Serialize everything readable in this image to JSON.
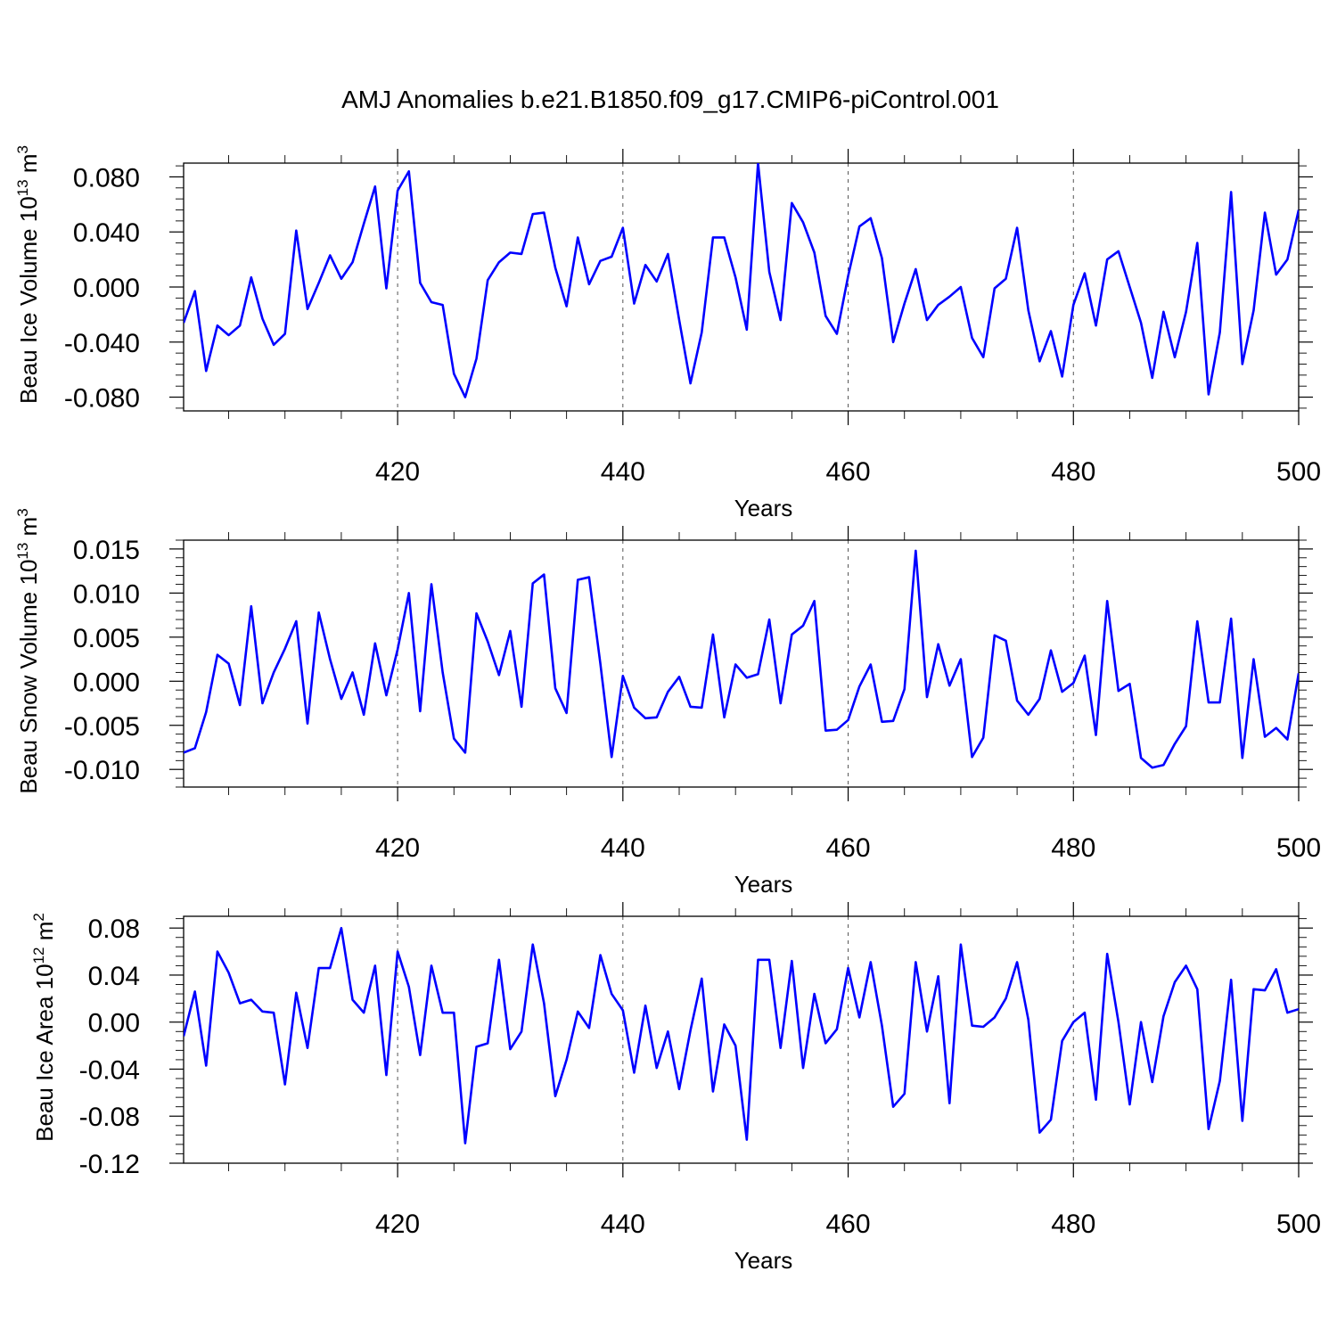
{
  "figure": {
    "title": "AMJ Anomalies b.e21.B1850.f09_g17.CMIP6-piControl.001",
    "line_color": "#0000ff"
  },
  "chart_data": [
    {
      "type": "line",
      "ylabel_main": "Beau Ice Volume 10",
      "ylabel_exp": "13",
      "ylabel_unit": " m",
      "ylabel_unit_exp": "3",
      "xlabel": "Years",
      "xlim": [
        401,
        500
      ],
      "ylim": [
        -0.09,
        0.09
      ],
      "xticks": [
        420,
        440,
        460,
        480,
        500
      ],
      "xtick_labels": [
        "420",
        "440",
        "460",
        "480",
        "500"
      ],
      "yticks": [
        -0.08,
        -0.04,
        0.0,
        0.04,
        0.08
      ],
      "ytick_labels": [
        "-0.080",
        "-0.040",
        "0.000",
        "0.040",
        "0.080"
      ],
      "vgrid": [
        420,
        440,
        460,
        480
      ],
      "series": [
        {
          "x_start": 401,
          "values": [
            -0.026,
            -0.003,
            -0.061,
            -0.028,
            -0.035,
            -0.028,
            0.007,
            -0.023,
            -0.042,
            -0.034,
            0.041,
            -0.016,
            0.003,
            0.023,
            0.006,
            0.018,
            0.046,
            0.073,
            -0.001,
            0.07,
            0.084,
            0.003,
            -0.011,
            -0.013,
            -0.063,
            -0.08,
            -0.052,
            0.005,
            0.018,
            0.025,
            0.024,
            0.053,
            0.054,
            0.014,
            -0.014,
            0.036,
            0.002,
            0.019,
            0.022,
            0.043,
            -0.012,
            0.016,
            0.004,
            0.024,
            -0.024,
            -0.07,
            -0.033,
            0.036,
            0.036,
            0.007,
            -0.031,
            0.09,
            0.011,
            -0.024,
            0.061,
            0.047,
            0.025,
            -0.021,
            -0.034,
            0.008,
            0.044,
            0.05,
            0.021,
            -0.04,
            -0.012,
            0.013,
            -0.024,
            -0.013,
            -0.007,
            0.0,
            -0.037,
            -0.051,
            -0.001,
            0.006,
            0.043,
            -0.017,
            -0.054,
            -0.032,
            -0.065,
            -0.013,
            0.01,
            -0.028,
            0.02,
            0.026,
            0.0,
            -0.026,
            -0.066,
            -0.018,
            -0.051,
            -0.018,
            0.032,
            -0.078,
            -0.033,
            0.069,
            -0.056,
            -0.017,
            0.054,
            0.009,
            0.02,
            0.056
          ]
        }
      ]
    },
    {
      "type": "line",
      "ylabel_main": "Beau Snow Volume 10",
      "ylabel_exp": "13",
      "ylabel_unit": " m",
      "ylabel_unit_exp": "3",
      "xlabel": "Years",
      "xlim": [
        401,
        500
      ],
      "ylim": [
        -0.012,
        0.016
      ],
      "xticks": [
        420,
        440,
        460,
        480,
        500
      ],
      "xtick_labels": [
        "420",
        "440",
        "460",
        "480",
        "500"
      ],
      "yticks": [
        -0.01,
        -0.005,
        0.0,
        0.005,
        0.01,
        0.015
      ],
      "ytick_labels": [
        "-0.010",
        "-0.005",
        "0.000",
        "0.005",
        "0.010",
        "0.015"
      ],
      "vgrid": [
        420,
        440,
        460,
        480
      ],
      "series": [
        {
          "x_start": 401,
          "values": [
            -0.0081,
            -0.0076,
            -0.0035,
            0.003,
            0.002,
            -0.0027,
            0.0085,
            -0.0025,
            0.001,
            0.0037,
            0.0068,
            -0.0048,
            0.0078,
            0.0025,
            -0.002,
            0.001,
            -0.0038,
            0.0043,
            -0.0016,
            0.0036,
            0.01,
            -0.0034,
            0.011,
            0.001,
            -0.0065,
            -0.0081,
            0.0077,
            0.0045,
            0.0007,
            0.0057,
            -0.0029,
            0.0111,
            0.0121,
            -0.0008,
            -0.0036,
            0.0115,
            0.0118,
            0.002,
            -0.0086,
            0.0006,
            -0.003,
            -0.0042,
            -0.0041,
            -0.0012,
            0.0005,
            -0.0029,
            -0.003,
            0.0053,
            -0.0041,
            0.0019,
            0.0004,
            0.0008,
            0.007,
            -0.0025,
            0.0053,
            0.0063,
            0.0091,
            -0.0056,
            -0.0055,
            -0.0044,
            -0.0006,
            0.0019,
            -0.0046,
            -0.0045,
            -0.0009,
            0.0148,
            -0.0018,
            0.0042,
            -0.0005,
            0.0025,
            -0.0086,
            -0.0064,
            0.0052,
            0.0046,
            -0.0022,
            -0.0038,
            -0.002,
            0.0035,
            -0.0012,
            -0.0002,
            0.0029,
            -0.0061,
            0.0091,
            -0.0011,
            -0.0003,
            -0.0087,
            -0.0098,
            -0.0095,
            -0.0071,
            -0.0051,
            0.0068,
            -0.0024,
            -0.0024,
            0.0071,
            -0.0087,
            0.0025,
            -0.0063,
            -0.0053,
            -0.0066,
            0.0009
          ]
        }
      ]
    },
    {
      "type": "line",
      "ylabel_main": "Beau Ice Area 10",
      "ylabel_exp": "12",
      "ylabel_unit": " m",
      "ylabel_unit_exp": "2",
      "xlabel": "Years",
      "xlim": [
        401,
        500
      ],
      "ylim": [
        -0.12,
        0.09
      ],
      "xticks": [
        420,
        440,
        460,
        480,
        500
      ],
      "xtick_labels": [
        "420",
        "440",
        "460",
        "480",
        "500"
      ],
      "yticks": [
        -0.12,
        -0.08,
        -0.04,
        0.0,
        0.04,
        0.08
      ],
      "ytick_labels": [
        "-0.12",
        "-0.08",
        "-0.04",
        "0.00",
        "0.04",
        "0.08"
      ],
      "vgrid": [
        420,
        440,
        460,
        480
      ],
      "series": [
        {
          "x_start": 401,
          "values": [
            -0.012,
            0.026,
            -0.037,
            0.06,
            0.042,
            0.016,
            0.019,
            0.009,
            0.008,
            -0.053,
            0.025,
            -0.022,
            0.046,
            0.046,
            0.08,
            0.019,
            0.008,
            0.048,
            -0.045,
            0.06,
            0.03,
            -0.028,
            0.048,
            0.008,
            0.008,
            -0.103,
            -0.021,
            -0.018,
            0.053,
            -0.023,
            -0.008,
            0.066,
            0.016,
            -0.063,
            -0.032,
            0.009,
            -0.005,
            0.057,
            0.024,
            0.01,
            -0.043,
            0.014,
            -0.039,
            -0.008,
            -0.057,
            -0.007,
            0.037,
            -0.059,
            -0.002,
            -0.02,
            -0.1,
            0.053,
            0.053,
            -0.022,
            0.052,
            -0.039,
            0.024,
            -0.018,
            -0.006,
            0.046,
            0.004,
            0.051,
            -0.003,
            -0.072,
            -0.061,
            0.051,
            -0.008,
            0.039,
            -0.069,
            0.066,
            -0.003,
            -0.004,
            0.004,
            0.02,
            0.051,
            0.002,
            -0.094,
            -0.083,
            -0.016,
            0.0,
            0.008,
            -0.066,
            0.058,
            0.0,
            -0.07,
            0.0,
            -0.051,
            0.005,
            0.034,
            0.048,
            0.028,
            -0.091,
            -0.05,
            0.036,
            -0.084,
            0.028,
            0.027,
            0.045,
            0.008,
            0.011
          ]
        }
      ]
    }
  ]
}
